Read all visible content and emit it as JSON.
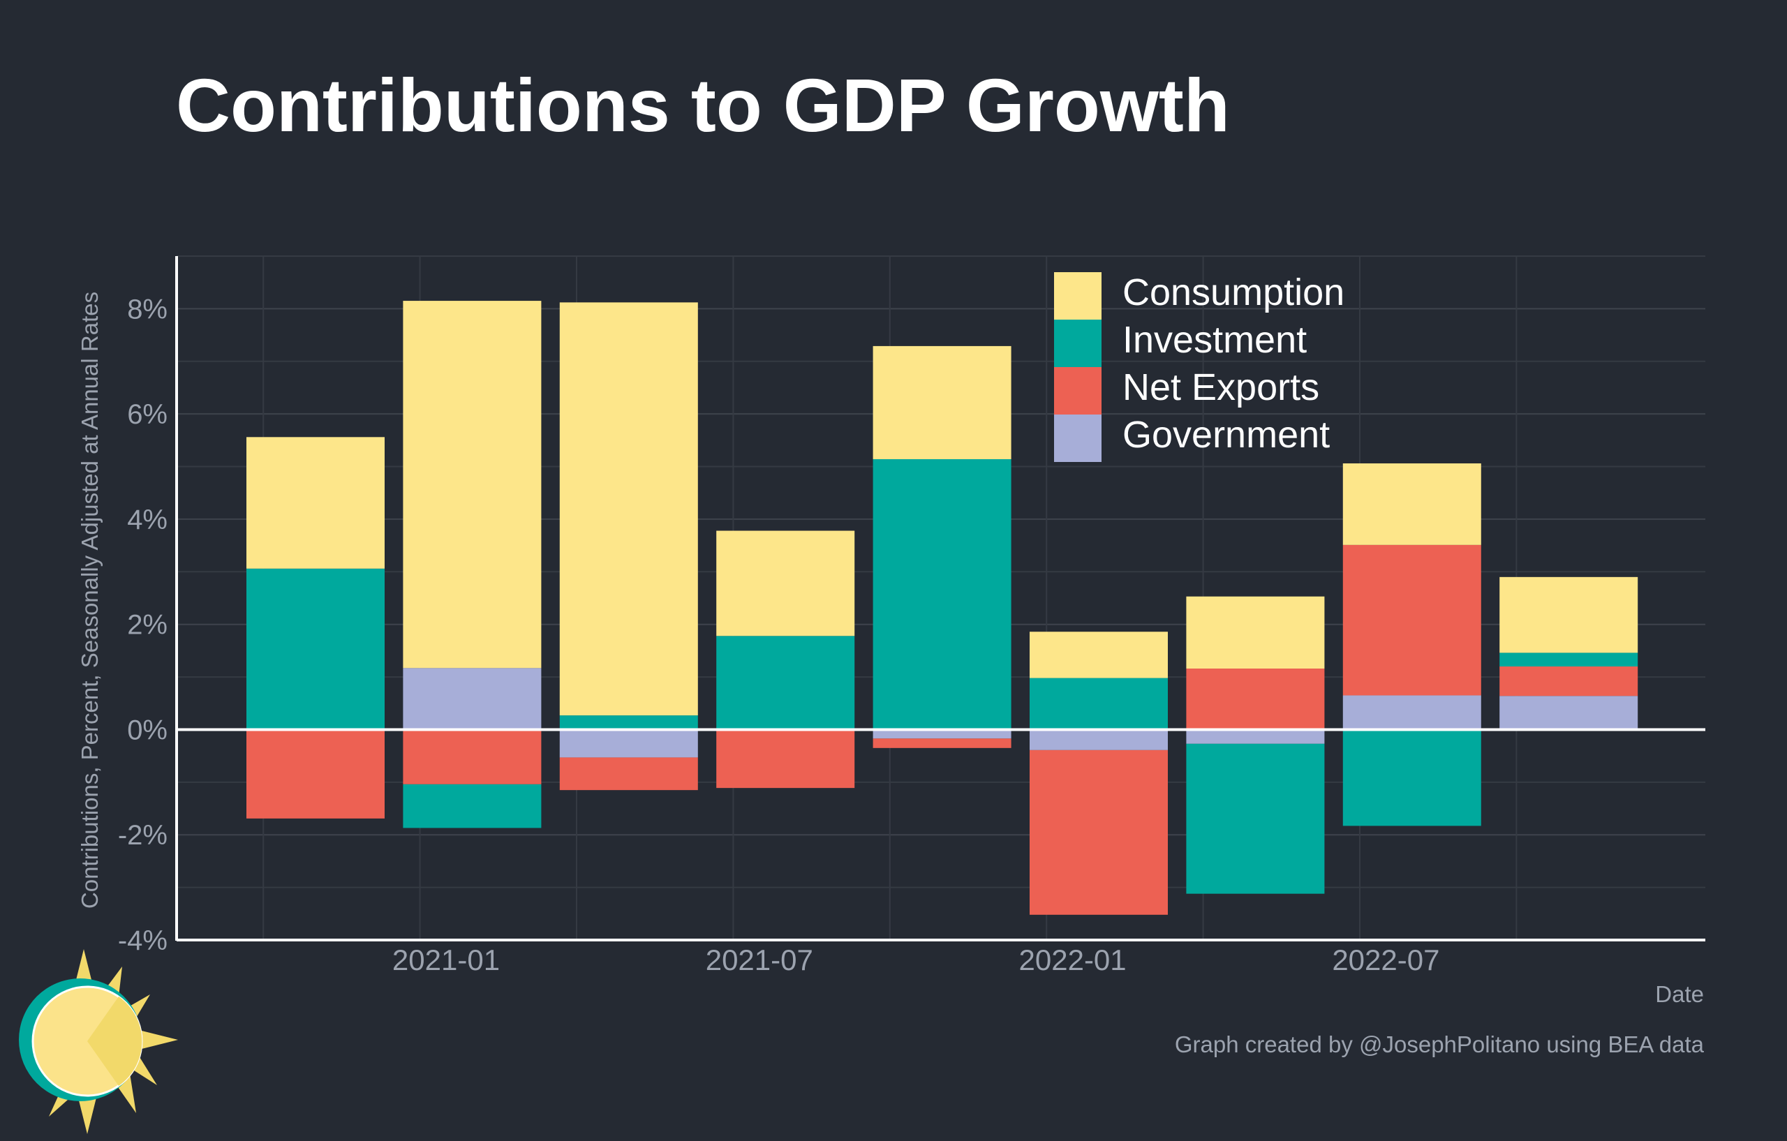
{
  "chart_data": {
    "type": "bar",
    "stacked": true,
    "title": "Contributions to GDP Growth",
    "ylabel": "Contributions, Percent, Seasonally Adjusted at Annual Rates",
    "xlabel": "Date",
    "caption": "Graph created by @JosephPolitano using BEA data",
    "ylim": [
      -4,
      9
    ],
    "yticks": [
      -4,
      -2,
      0,
      2,
      4,
      6,
      8
    ],
    "ytick_labels": [
      "-4%",
      "-2%",
      "0%",
      "2%",
      "4%",
      "6%",
      "8%"
    ],
    "xtick_labels": [
      "2021-01",
      "2021-07",
      "2022-01",
      "2022-07"
    ],
    "xtick_positions": [
      "2021-01",
      "2021-07",
      "2022-01",
      "2022-07"
    ],
    "grid": true,
    "legend_position": "top-center",
    "categories": [
      "2020-10",
      "2021-01",
      "2021-04",
      "2021-07",
      "2021-10",
      "2022-01",
      "2022-04",
      "2022-07",
      "2022-10"
    ],
    "series": [
      {
        "name": "Consumption",
        "color": "#fde68a",
        "values": [
          2.5,
          6.98,
          7.85,
          2.0,
          2.15,
          0.88,
          1.37,
          1.55,
          1.44
        ]
      },
      {
        "name": "Investment",
        "color": "#00a99d",
        "values": [
          3.06,
          -0.83,
          0.27,
          1.78,
          5.14,
          0.98,
          -2.85,
          -1.83,
          0.26
        ]
      },
      {
        "name": "Net Exports",
        "color": "#ed6153",
        "values": [
          -1.69,
          -1.04,
          -0.62,
          -1.11,
          -0.18,
          -3.13,
          1.16,
          2.86,
          0.56
        ]
      },
      {
        "name": "Government",
        "color": "#a7aed8",
        "values": [
          0.0,
          1.17,
          -0.53,
          0.0,
          -0.17,
          -0.39,
          -0.27,
          0.65,
          0.64
        ]
      }
    ]
  }
}
